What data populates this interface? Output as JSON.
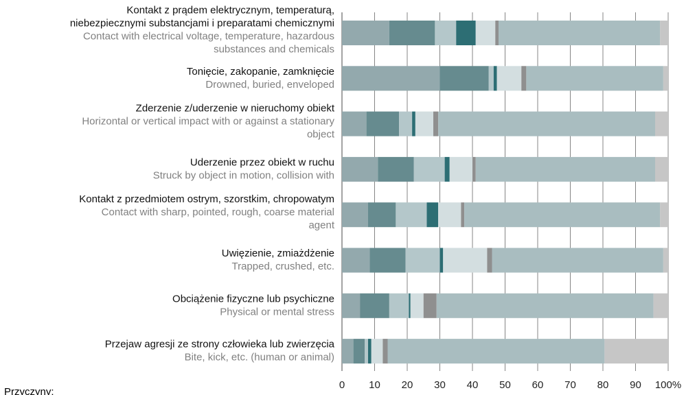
{
  "chart_data": {
    "type": "stacked-bar-horizontal",
    "categories": [
      {
        "pl": [
          "Kontakt z prądem elektrycznym, temperaturą,",
          "niebezpiecznymi substancjami i preparatami chemicznymi"
        ],
        "en": [
          "Contact with electrical voltage, temperature, hazardous",
          "substances and chemicals"
        ]
      },
      {
        "pl": [
          "Tonięcie, zakopanie, zamknięcie"
        ],
        "en": [
          "Drowned, buried, enveloped"
        ]
      },
      {
        "pl": [
          "Zderzenie z/uderzenie w nieruchomy obiekt"
        ],
        "en": [
          "Horizontal or vertical impact with or against a stationary",
          "object"
        ]
      },
      {
        "pl": [
          "Uderzenie przez obiekt w ruchu"
        ],
        "en": [
          "Struck by object in motion, collision with"
        ]
      },
      {
        "pl": [
          "Kontakt z przedmiotem ostrym, szorstkim, chropowatym"
        ],
        "en": [
          "Contact with sharp, pointed, rough, coarse material",
          "agent"
        ]
      },
      {
        "pl": [
          "Uwięzienie, zmiażdżenie"
        ],
        "en": [
          "Trapped, crushed, etc."
        ]
      },
      {
        "pl": [
          "Obciążenie fizyczne lub psychiczne"
        ],
        "en": [
          "Physical or mental stress"
        ]
      },
      {
        "pl": [
          "Przejaw agresji ze strony człowieka lub zwierzęcia"
        ],
        "en": [
          "Bite, kick, etc. (human or animal)"
        ]
      }
    ],
    "series": [
      {
        "color": "#93a9ad",
        "values": [
          14.5,
          30,
          7.5,
          11,
          8,
          8.5,
          5.5,
          3.5
        ]
      },
      {
        "color": "#668b8f",
        "values": [
          14,
          15,
          10,
          11,
          8.5,
          11,
          9,
          3.5
        ]
      },
      {
        "color": "#b4c7ca",
        "values": [
          6.5,
          1.5,
          4,
          9.5,
          9.5,
          10.5,
          6,
          1
        ]
      },
      {
        "color": "#2d6e74",
        "values": [
          6,
          1,
          1,
          1.5,
          3.5,
          1,
          0.5,
          1
        ]
      },
      {
        "color": "#d3dee0",
        "values": [
          6,
          7.5,
          5.5,
          7,
          7,
          13.5,
          4,
          3.5
        ]
      },
      {
        "color": "#8f8f8f",
        "values": [
          1,
          1.5,
          1.5,
          1,
          1,
          1.5,
          4,
          1.5
        ]
      },
      {
        "color": "#a9bdc0",
        "values": [
          49.5,
          42,
          66.5,
          55,
          60,
          52.5,
          66.5,
          66.5
        ]
      },
      {
        "color": "#c6c6c6",
        "values": [
          2.5,
          1.5,
          4,
          4,
          2.5,
          1.5,
          4.5,
          19.5
        ]
      }
    ],
    "xlim": [
      0,
      100
    ],
    "xticks": [
      0,
      10,
      20,
      30,
      40,
      50,
      60,
      70,
      80,
      90,
      {
        "value": 100,
        "label": "100%"
      }
    ],
    "legend_title": "Przyczyny:"
  }
}
